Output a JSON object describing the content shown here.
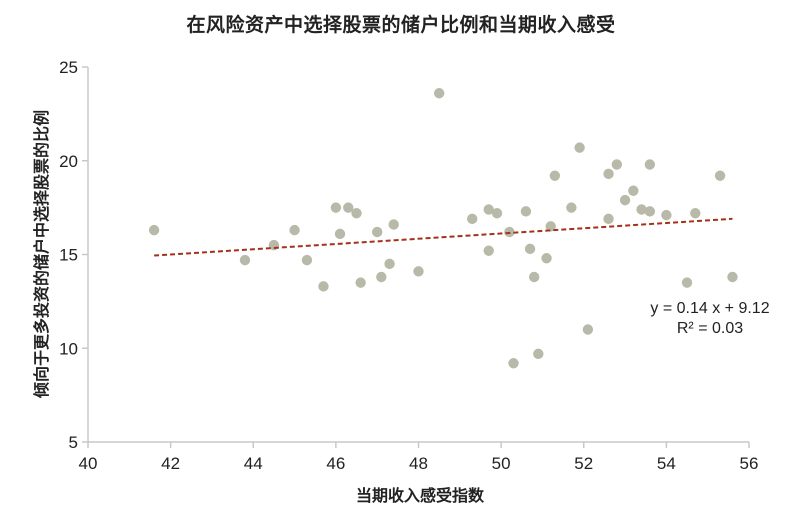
{
  "chart_data": {
    "type": "scatter",
    "title": "在风险资产中选择股票的储户比例和当期收入感受",
    "xlabel": "当期收入感受指数",
    "ylabel": "倾向于更多投资的储户中选择股票的比例",
    "xlim": [
      40,
      56
    ],
    "ylim": [
      5,
      25
    ],
    "xticks": [
      40,
      42,
      44,
      46,
      48,
      50,
      52,
      54,
      56
    ],
    "yticks": [
      5,
      10,
      15,
      20,
      25
    ],
    "grid": false,
    "legend": null,
    "colors": {
      "points": "#b9b9a9",
      "trendline": "#a3321c",
      "axis": "#c8c8c8"
    },
    "points": [
      [
        41.6,
        16.3
      ],
      [
        43.8,
        14.7
      ],
      [
        44.5,
        15.5
      ],
      [
        45.0,
        16.3
      ],
      [
        45.3,
        14.7
      ],
      [
        45.7,
        13.3
      ],
      [
        46.0,
        17.5
      ],
      [
        46.3,
        17.5
      ],
      [
        46.5,
        17.2
      ],
      [
        46.1,
        16.1
      ],
      [
        47.0,
        16.2
      ],
      [
        47.4,
        16.6
      ],
      [
        46.6,
        13.5
      ],
      [
        47.1,
        13.8
      ],
      [
        47.3,
        14.5
      ],
      [
        48.0,
        14.1
      ],
      [
        48.5,
        23.6
      ],
      [
        49.3,
        16.9
      ],
      [
        49.7,
        17.4
      ],
      [
        49.9,
        17.2
      ],
      [
        50.6,
        17.3
      ],
      [
        50.2,
        16.2
      ],
      [
        51.2,
        16.5
      ],
      [
        51.7,
        17.5
      ],
      [
        49.7,
        15.2
      ],
      [
        50.7,
        15.3
      ],
      [
        51.1,
        14.8
      ],
      [
        50.8,
        13.8
      ],
      [
        50.3,
        9.2
      ],
      [
        50.9,
        9.7
      ],
      [
        52.1,
        11.0
      ],
      [
        51.9,
        20.7
      ],
      [
        51.3,
        19.2
      ],
      [
        52.6,
        19.3
      ],
      [
        52.8,
        19.8
      ],
      [
        53.6,
        19.8
      ],
      [
        53.2,
        18.4
      ],
      [
        53.0,
        17.9
      ],
      [
        53.4,
        17.4
      ],
      [
        53.6,
        17.3
      ],
      [
        52.6,
        16.9
      ],
      [
        54.0,
        17.1
      ],
      [
        54.7,
        17.2
      ],
      [
        55.3,
        19.2
      ],
      [
        54.5,
        13.5
      ],
      [
        55.6,
        13.8
      ]
    ],
    "trendline": {
      "type": "linear",
      "slope": 0.14,
      "intercept": 9.12,
      "x_range": [
        41.6,
        55.6
      ],
      "style": "dashed",
      "equation_label": "y = 0.14 x + 9.12",
      "r2_label": "R² = 0.03"
    }
  }
}
